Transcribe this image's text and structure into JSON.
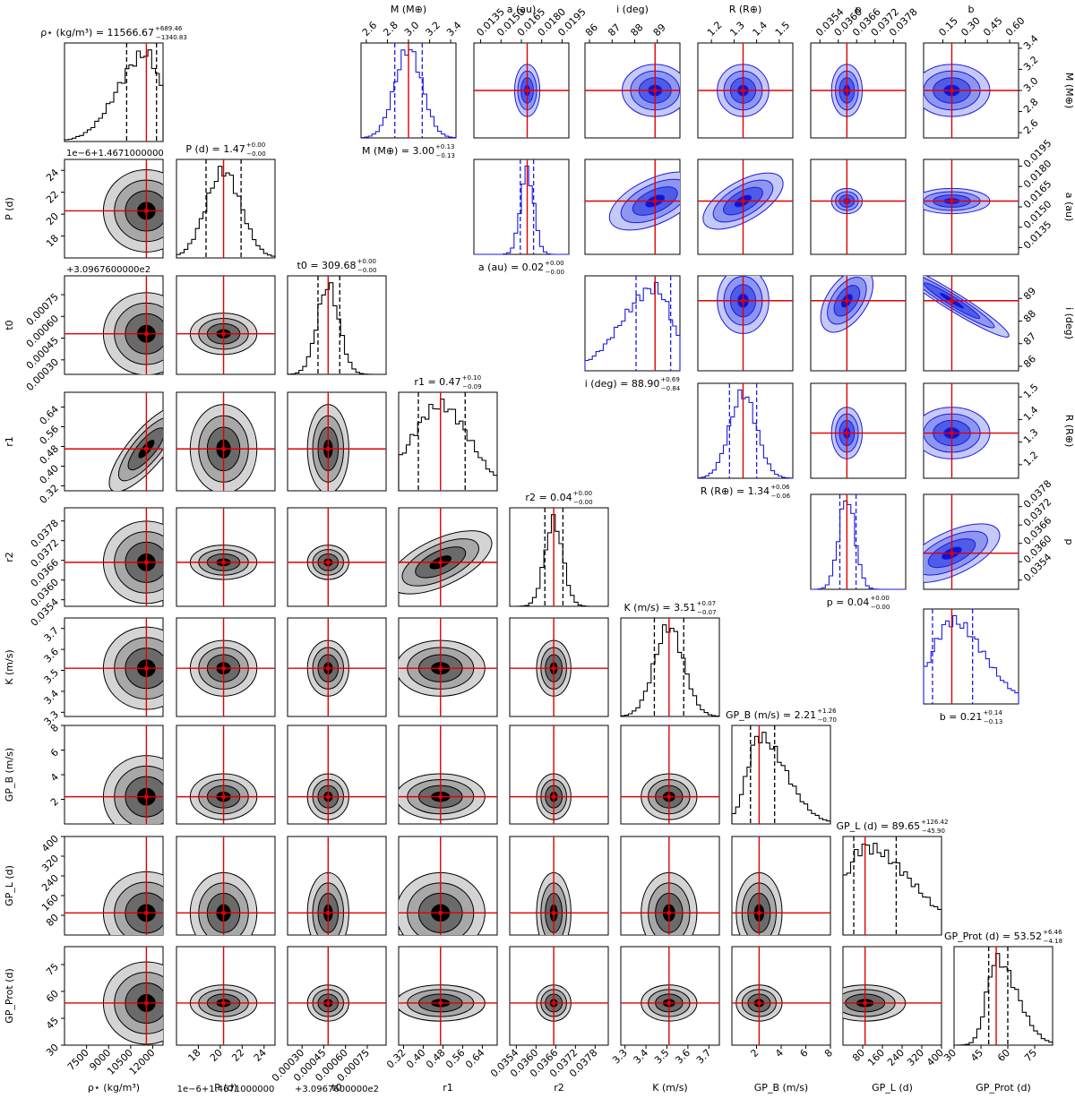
{
  "figure": {
    "type": "corner plot",
    "lower_color": "#000000",
    "lower_fill_levels": [
      "#d4d4d4",
      "#a8a8a8",
      "#6a6a6a",
      "#000000"
    ],
    "upper_color": "#1a1ae6",
    "upper_fill_levels": [
      "#c5c9f5",
      "#8e97ef",
      "#4f5ce6",
      "#0a14d8"
    ],
    "truth_color": "#e00000"
  },
  "chart_data": [
    {
      "type": "corner-lower",
      "parameters": [
        {
          "key": "rho",
          "label": "ρ⋆ (kg/m³)",
          "median": 11566.67,
          "plus": "+689.46",
          "minus": "−1340.83",
          "title": "ρ⋆ (kg/m³) = 11566.67",
          "range": [
            6000,
            12700
          ],
          "ticks": [
            7500,
            9000,
            10500,
            12000
          ],
          "tick_labels": [
            "7500",
            "9000",
            "10500",
            "12000"
          ],
          "offset_label": "",
          "lo": 10226,
          "hi": 12256,
          "skew": "left"
        },
        {
          "key": "P",
          "label": "P (d)",
          "median": 1.47,
          "plus": "+0.00",
          "minus": "−0.00",
          "title": "P (d) = 1.47",
          "range": [
            16,
            25
          ],
          "ticks": [
            18,
            20,
            22,
            24
          ],
          "tick_labels": [
            "18",
            "20",
            "22",
            "24"
          ],
          "offset_label": "1e−6+1.4671000000",
          "center": 20.3,
          "lo": 18.7,
          "hi": 21.9
        },
        {
          "key": "t0",
          "label": "t0",
          "median": 309.68,
          "plus": "+0.00",
          "minus": "−0.00",
          "title": "t0 = 309.68",
          "range": [
            0.0002,
            0.00088
          ],
          "ticks": [
            0.0003,
            0.00045,
            0.0006,
            0.00075
          ],
          "tick_labels": [
            "0.00030",
            "0.00045",
            "0.00060",
            "0.00075"
          ],
          "offset_label": "+3.0967600000e2",
          "center": 0.00048,
          "lo": 0.00041,
          "hi": 0.00056
        },
        {
          "key": "r1",
          "label": "r1",
          "median": 0.47,
          "plus": "+0.10",
          "minus": "−0.09",
          "title": "r1 = 0.47",
          "range": [
            0.3,
            0.7
          ],
          "ticks": [
            0.32,
            0.4,
            0.48,
            0.56,
            0.64
          ],
          "tick_labels": [
            "0.32",
            "0.40",
            "0.48",
            "0.56",
            "0.64"
          ],
          "offset_label": "",
          "lo": 0.38,
          "hi": 0.57
        },
        {
          "key": "r2",
          "label": "r2",
          "median": 0.04,
          "plus": "+0.00",
          "minus": "−0.00",
          "title": "r2 = 0.04",
          "range": [
            0.0352,
            0.0382
          ],
          "ticks": [
            0.0354,
            0.036,
            0.0366,
            0.0372,
            0.0378
          ],
          "tick_labels": [
            "0.0354",
            "0.0360",
            "0.0366",
            "0.0372",
            "0.0378"
          ],
          "offset_label": "",
          "center": 0.03654,
          "lo": 0.03627,
          "hi": 0.03682
        },
        {
          "key": "K",
          "label": "K (m/s)",
          "median": 3.51,
          "plus": "+0.07",
          "minus": "−0.07",
          "title": "K (m/s) = 3.51",
          "range": [
            3.28,
            3.75
          ],
          "ticks": [
            3.3,
            3.4,
            3.5,
            3.6,
            3.7
          ],
          "tick_labels": [
            "3.3",
            "3.4",
            "3.5",
            "3.6",
            "3.7"
          ],
          "offset_label": "",
          "lo": 3.44,
          "hi": 3.58
        },
        {
          "key": "GPB",
          "label": "GP_B (m/s)",
          "median": 2.21,
          "plus": "+1.26",
          "minus": "−0.70",
          "title": "GP_B (m/s) = 2.21",
          "range": [
            0,
            8
          ],
          "ticks": [
            2,
            4,
            6,
            8
          ],
          "tick_labels": [
            "2",
            "4",
            "6",
            "8"
          ],
          "offset_label": "",
          "lo": 1.51,
          "hi": 3.47
        },
        {
          "key": "GPL",
          "label": "GP_L (d)",
          "median": 89.65,
          "plus": "+126.42",
          "minus": "−45.90",
          "title": "GP_L (d) = 89.65",
          "range": [
            0,
            400
          ],
          "ticks": [
            80,
            160,
            240,
            320,
            400
          ],
          "tick_labels": [
            "80",
            "160",
            "240",
            "320",
            "400"
          ],
          "offset_label": "",
          "lo": 43.75,
          "hi": 216.07
        },
        {
          "key": "GPP",
          "label": "GP_Prot (d)",
          "median": 53.52,
          "plus": "+6.46",
          "minus": "−4.18",
          "title": "GP_Prot (d) = 53.52",
          "range": [
            30,
            85
          ],
          "ticks": [
            30,
            45,
            60,
            75
          ],
          "tick_labels": [
            "30",
            "45",
            "60",
            "75"
          ],
          "offset_label": "",
          "lo": 49.34,
          "hi": 59.98
        }
      ]
    },
    {
      "type": "corner-upper",
      "parameters": [
        {
          "key": "M",
          "label": "M (M⊕)",
          "median": 3.0,
          "plus": "+0.13",
          "minus": "−0.13",
          "title": "M (M⊕) = 3.00",
          "range": [
            2.55,
            3.45
          ],
          "ticks": [
            2.6,
            2.8,
            3.0,
            3.2,
            3.4
          ],
          "tick_labels": [
            "2.6",
            "2.8",
            "3.0",
            "3.2",
            "3.4"
          ],
          "lo": 2.87,
          "hi": 3.13
        },
        {
          "key": "a",
          "label": "a (au)",
          "median": 0.02,
          "plus": "+0.00",
          "minus": "−0.00",
          "title": "a (au) = 0.02",
          "range": [
            0.013,
            0.02
          ],
          "ticks": [
            0.0135,
            0.015,
            0.0165,
            0.018,
            0.0195
          ],
          "tick_labels": [
            "0.0135",
            "0.0150",
            "0.0165",
            "0.0180",
            "0.0195"
          ],
          "center": 0.01693,
          "lo": 0.01642,
          "hi": 0.0174
        },
        {
          "key": "i",
          "label": "i (deg)",
          "median": 88.9,
          "plus": "+0.69",
          "minus": "−0.84",
          "title": "i (deg) = 88.90",
          "range": [
            85.8,
            90.0
          ],
          "ticks": [
            86,
            87,
            88,
            89
          ],
          "tick_labels": [
            "86",
            "87",
            "88",
            "89"
          ],
          "lo": 88.06,
          "hi": 89.59,
          "skew": "left"
        },
        {
          "key": "R",
          "label": "R (R⊕)",
          "median": 1.34,
          "plus": "+0.06",
          "minus": "−0.06",
          "title": "R (R⊕) = 1.34",
          "range": [
            1.14,
            1.56
          ],
          "ticks": [
            1.2,
            1.3,
            1.4,
            1.5
          ],
          "tick_labels": [
            "1.2",
            "1.3",
            "1.4",
            "1.5"
          ],
          "lo": 1.28,
          "hi": 1.4
        },
        {
          "key": "p",
          "label": "p",
          "median": 0.04,
          "plus": "+0.00",
          "minus": "−0.00",
          "title": "p = 0.04",
          "range": [
            0.0351,
            0.0382
          ],
          "ticks": [
            0.0354,
            0.036,
            0.0366,
            0.0372,
            0.0378
          ],
          "tick_labels": [
            "0.0354",
            "0.0360",
            "0.0366",
            "0.0372",
            "0.0378"
          ],
          "center": 0.03628,
          "lo": 0.03605,
          "hi": 0.03658
        },
        {
          "key": "b",
          "label": "b",
          "median": 0.21,
          "plus": "+0.14",
          "minus": "−0.13",
          "title": "b = 0.21",
          "range": [
            0.02,
            0.66
          ],
          "ticks": [
            0.15,
            0.3,
            0.45,
            0.6
          ],
          "tick_labels": [
            "0.15",
            "0.30",
            "0.45",
            "0.60"
          ],
          "lo": 0.08,
          "hi": 0.35
        }
      ]
    }
  ]
}
